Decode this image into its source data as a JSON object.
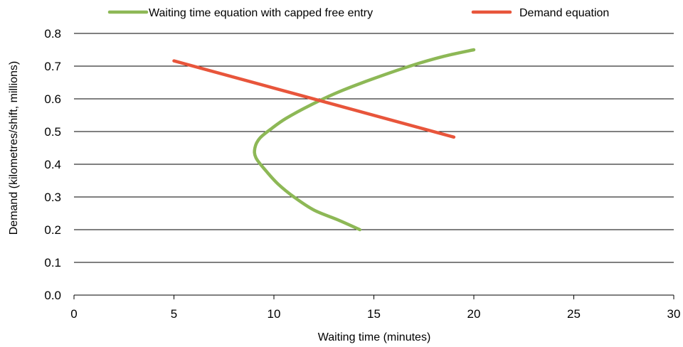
{
  "chart_data": {
    "type": "line",
    "title": "",
    "xlabel": "Waiting time (minutes)",
    "ylabel": "Demand (kilometres/shift, millions)",
    "xlim": [
      0,
      30
    ],
    "ylim": [
      0,
      0.8
    ],
    "x_ticks": [
      0,
      5,
      10,
      15,
      20,
      25,
      30
    ],
    "y_ticks": [
      0.0,
      0.1,
      0.2,
      0.3,
      0.4,
      0.5,
      0.6,
      0.7,
      0.8
    ],
    "x_tick_labels": [
      "0",
      "5",
      "10",
      "15",
      "20",
      "25",
      "30"
    ],
    "y_tick_labels": [
      "0.0",
      "0.1",
      "0.2",
      "0.3",
      "0.4",
      "0.5",
      "0.6",
      "0.7",
      "0.8"
    ],
    "grid": "horizontal",
    "legend_position": "top",
    "series": [
      {
        "name": "Waiting time equation with capped free entry",
        "color": "#8db856",
        "x": [
          14.3,
          13.2,
          12.0,
          11.0,
          10.2,
          9.6,
          9.1,
          9.05,
          9.3,
          9.9,
          10.6,
          11.8,
          13.2,
          14.9,
          16.8,
          18.5,
          20.0
        ],
        "y": [
          0.2,
          0.23,
          0.26,
          0.3,
          0.34,
          0.38,
          0.42,
          0.45,
          0.48,
          0.51,
          0.54,
          0.58,
          0.62,
          0.66,
          0.7,
          0.73,
          0.75
        ]
      },
      {
        "name": "Demand equation",
        "color": "#e8553b",
        "x": [
          5,
          19
        ],
        "y": [
          0.716,
          0.483
        ]
      }
    ]
  }
}
